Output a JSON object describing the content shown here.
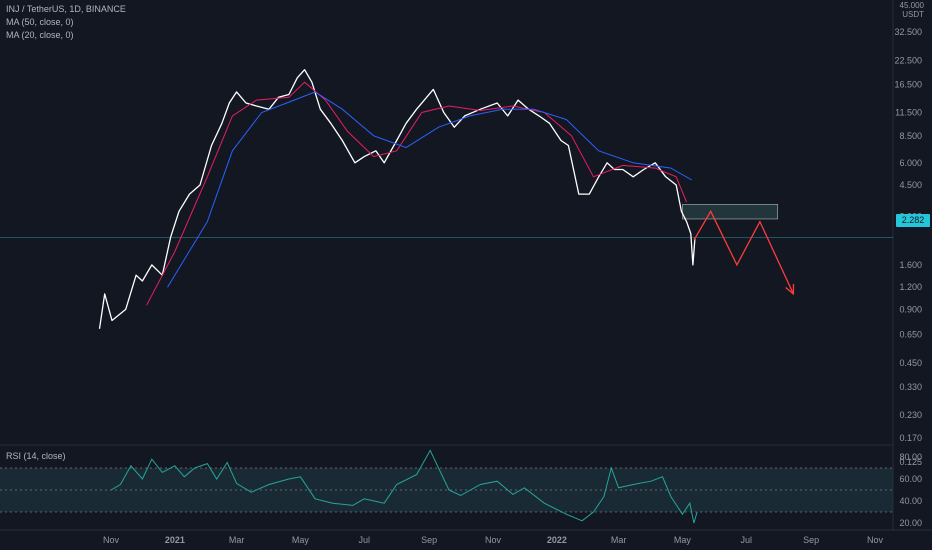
{
  "header": {
    "symbol_line": "INJ / TetherUS, 1D, BINANCE",
    "ma50_label": "MA (50, close, 0)",
    "ma20_label": "MA (20, close, 0)",
    "rsi_label": "RSI (14, close)"
  },
  "price_axis": {
    "currency": "USDT",
    "top_partial_label": "45.000",
    "current_price": "2.282"
  },
  "colors": {
    "background": "#131722",
    "up_candle": "#ffffff",
    "down_candle": "#ffffff",
    "ma50": "#2962ff",
    "ma20": "#e91e63",
    "rsi_line": "#26a69a",
    "rsi_band": "#1f3b45",
    "forecast_arrow": "#ff3b3b",
    "resistance_box": "#2f4f4f",
    "price_line": "#26c6da"
  },
  "chart_data": {
    "type": "line",
    "title": "INJ / TetherUS, 1D, BINANCE",
    "scale": "log",
    "ylim": [
      0.11,
      45
    ],
    "price_ticks": [
      "45.000",
      "32.500",
      "22.500",
      "16.500",
      "11.500",
      "8.500",
      "6.000",
      "4.500",
      "3.000",
      "2.282",
      "1.600",
      "1.200",
      "0.900",
      "0.650",
      "0.450",
      "0.330",
      "0.230",
      "0.170",
      "0.125"
    ],
    "time_ticks": [
      "Nov",
      "2021",
      "Mar",
      "May",
      "Jul",
      "Sep",
      "Nov",
      "2022",
      "Mar",
      "May",
      "Jul",
      "Sep",
      "Nov"
    ],
    "series": [
      {
        "name": "INJ close",
        "points": [
          [
            "2020-10-21",
            0.7
          ],
          [
            "2020-10-26",
            1.1
          ],
          [
            "2020-11-02",
            0.78
          ],
          [
            "2020-11-15",
            0.9
          ],
          [
            "2020-11-25",
            1.4
          ],
          [
            "2020-12-01",
            1.3
          ],
          [
            "2020-12-10",
            1.6
          ],
          [
            "2020-12-20",
            1.4
          ],
          [
            "2020-12-28",
            2.3
          ],
          [
            "2021-01-05",
            3.2
          ],
          [
            "2021-01-15",
            4.0
          ],
          [
            "2021-01-25",
            4.5
          ],
          [
            "2021-02-05",
            7.5
          ],
          [
            "2021-02-15",
            10.0
          ],
          [
            "2021-02-22",
            13.0
          ],
          [
            "2021-03-01",
            15.0
          ],
          [
            "2021-03-10",
            13.0
          ],
          [
            "2021-03-20",
            12.5
          ],
          [
            "2021-04-01",
            12.0
          ],
          [
            "2021-04-10",
            14.0
          ],
          [
            "2021-04-20",
            14.5
          ],
          [
            "2021-04-28",
            18.0
          ],
          [
            "2021-05-05",
            20.0
          ],
          [
            "2021-05-12",
            17.0
          ],
          [
            "2021-05-20",
            12.0
          ],
          [
            "2021-05-30",
            10.0
          ],
          [
            "2021-06-10",
            8.0
          ],
          [
            "2021-06-22",
            6.0
          ],
          [
            "2021-07-01",
            6.5
          ],
          [
            "2021-07-12",
            7.0
          ],
          [
            "2021-07-20",
            6.0
          ],
          [
            "2021-08-01",
            8.0
          ],
          [
            "2021-08-10",
            10.0
          ],
          [
            "2021-08-20",
            12.0
          ],
          [
            "2021-09-05",
            15.5
          ],
          [
            "2021-09-15",
            11.5
          ],
          [
            "2021-09-25",
            9.5
          ],
          [
            "2021-10-05",
            11.0
          ],
          [
            "2021-10-20",
            12.0
          ],
          [
            "2021-11-05",
            13.0
          ],
          [
            "2021-11-15",
            11.0
          ],
          [
            "2021-11-25",
            13.5
          ],
          [
            "2021-12-05",
            12.0
          ],
          [
            "2021-12-15",
            11.0
          ],
          [
            "2021-12-25",
            10.0
          ],
          [
            "2022-01-05",
            8.0
          ],
          [
            "2022-01-12",
            7.5
          ],
          [
            "2022-01-22",
            4.0
          ],
          [
            "2022-02-01",
            4.0
          ],
          [
            "2022-02-10",
            5.0
          ],
          [
            "2022-02-18",
            6.0
          ],
          [
            "2022-02-25",
            5.5
          ],
          [
            "2022-03-05",
            5.5
          ],
          [
            "2022-03-15",
            5.0
          ],
          [
            "2022-03-25",
            5.5
          ],
          [
            "2022-04-05",
            6.0
          ],
          [
            "2022-04-15",
            5.0
          ],
          [
            "2022-04-25",
            4.5
          ],
          [
            "2022-04-30",
            3.2
          ],
          [
            "2022-05-05",
            2.8
          ],
          [
            "2022-05-09",
            2.4
          ],
          [
            "2022-05-11",
            1.6
          ],
          [
            "2022-05-13",
            2.282
          ]
        ]
      },
      {
        "name": "MA (20, close, 0)",
        "points": [
          [
            "2020-12-05",
            0.95
          ],
          [
            "2021-01-01",
            1.9
          ],
          [
            "2021-02-01",
            5.0
          ],
          [
            "2021-02-25",
            11.0
          ],
          [
            "2021-03-20",
            13.5
          ],
          [
            "2021-04-20",
            14.0
          ],
          [
            "2021-05-05",
            17.0
          ],
          [
            "2021-05-25",
            13.5
          ],
          [
            "2021-06-15",
            9.0
          ],
          [
            "2021-07-10",
            6.5
          ],
          [
            "2021-08-01",
            7.0
          ],
          [
            "2021-08-25",
            11.5
          ],
          [
            "2021-09-20",
            12.5
          ],
          [
            "2021-10-20",
            11.8
          ],
          [
            "2021-11-20",
            12.5
          ],
          [
            "2021-12-20",
            11.5
          ],
          [
            "2022-01-15",
            8.5
          ],
          [
            "2022-02-05",
            5.0
          ],
          [
            "2022-03-05",
            5.8
          ],
          [
            "2022-04-05",
            5.6
          ],
          [
            "2022-04-25",
            5.0
          ],
          [
            "2022-05-05",
            3.6
          ]
        ]
      },
      {
        "name": "MA (50, close, 0)",
        "points": [
          [
            "2020-12-25",
            1.2
          ],
          [
            "2021-02-01",
            2.8
          ],
          [
            "2021-02-25",
            7.0
          ],
          [
            "2021-03-25",
            11.5
          ],
          [
            "2021-04-25",
            13.5
          ],
          [
            "2021-05-15",
            15.0
          ],
          [
            "2021-06-10",
            12.0
          ],
          [
            "2021-07-10",
            8.5
          ],
          [
            "2021-08-10",
            7.3
          ],
          [
            "2021-09-10",
            9.5
          ],
          [
            "2021-10-10",
            11.0
          ],
          [
            "2021-11-10",
            12.0
          ],
          [
            "2021-12-10",
            12.0
          ],
          [
            "2022-01-10",
            10.5
          ],
          [
            "2022-02-10",
            7.0
          ],
          [
            "2022-03-15",
            6.0
          ],
          [
            "2022-04-20",
            5.6
          ],
          [
            "2022-05-10",
            4.8
          ]
        ]
      }
    ],
    "rsi": {
      "name": "RSI (14, close)",
      "ticks": [
        "80.00",
        "60.00",
        "40.00",
        "20.00"
      ],
      "upper": 70,
      "middle": 50,
      "lower": 30,
      "points": [
        [
          "2020-11-01",
          50
        ],
        [
          "2020-11-10",
          55
        ],
        [
          "2020-11-20",
          72
        ],
        [
          "2020-12-01",
          60
        ],
        [
          "2020-12-10",
          78
        ],
        [
          "2020-12-20",
          66
        ],
        [
          "2021-01-01",
          72
        ],
        [
          "2021-01-10",
          62
        ],
        [
          "2021-01-20",
          70
        ],
        [
          "2021-02-01",
          74
        ],
        [
          "2021-02-10",
          60
        ],
        [
          "2021-02-20",
          75
        ],
        [
          "2021-03-01",
          56
        ],
        [
          "2021-03-15",
          48
        ],
        [
          "2021-04-01",
          55
        ],
        [
          "2021-04-20",
          60
        ],
        [
          "2021-05-01",
          62
        ],
        [
          "2021-05-15",
          42
        ],
        [
          "2021-06-01",
          38
        ],
        [
          "2021-06-20",
          36
        ],
        [
          "2021-07-01",
          42
        ],
        [
          "2021-07-20",
          38
        ],
        [
          "2021-08-01",
          55
        ],
        [
          "2021-08-20",
          64
        ],
        [
          "2021-09-02",
          86
        ],
        [
          "2021-09-20",
          50
        ],
        [
          "2021-10-01",
          45
        ],
        [
          "2021-10-20",
          55
        ],
        [
          "2021-11-05",
          58
        ],
        [
          "2021-11-20",
          46
        ],
        [
          "2021-12-01",
          52
        ],
        [
          "2021-12-20",
          38
        ],
        [
          "2022-01-10",
          28
        ],
        [
          "2022-01-25",
          22
        ],
        [
          "2022-02-05",
          30
        ],
        [
          "2022-02-15",
          44
        ],
        [
          "2022-02-22",
          70
        ],
        [
          "2022-03-01",
          52
        ],
        [
          "2022-03-15",
          55
        ],
        [
          "2022-04-01",
          58
        ],
        [
          "2022-04-12",
          62
        ],
        [
          "2022-04-20",
          44
        ],
        [
          "2022-05-01",
          28
        ],
        [
          "2022-05-08",
          38
        ],
        [
          "2022-05-12",
          20
        ],
        [
          "2022-05-15",
          30
        ]
      ]
    },
    "resistance_zone": {
      "from": "2022-05-01",
      "to": "2022-07-31",
      "low": 2.9,
      "high": 3.5
    },
    "forecast_path": [
      [
        "2022-05-12",
        2.2
      ],
      [
        "2022-05-28",
        3.2
      ],
      [
        "2022-06-22",
        1.6
      ],
      [
        "2022-07-14",
        2.8
      ],
      [
        "2022-08-15",
        1.1
      ]
    ]
  }
}
